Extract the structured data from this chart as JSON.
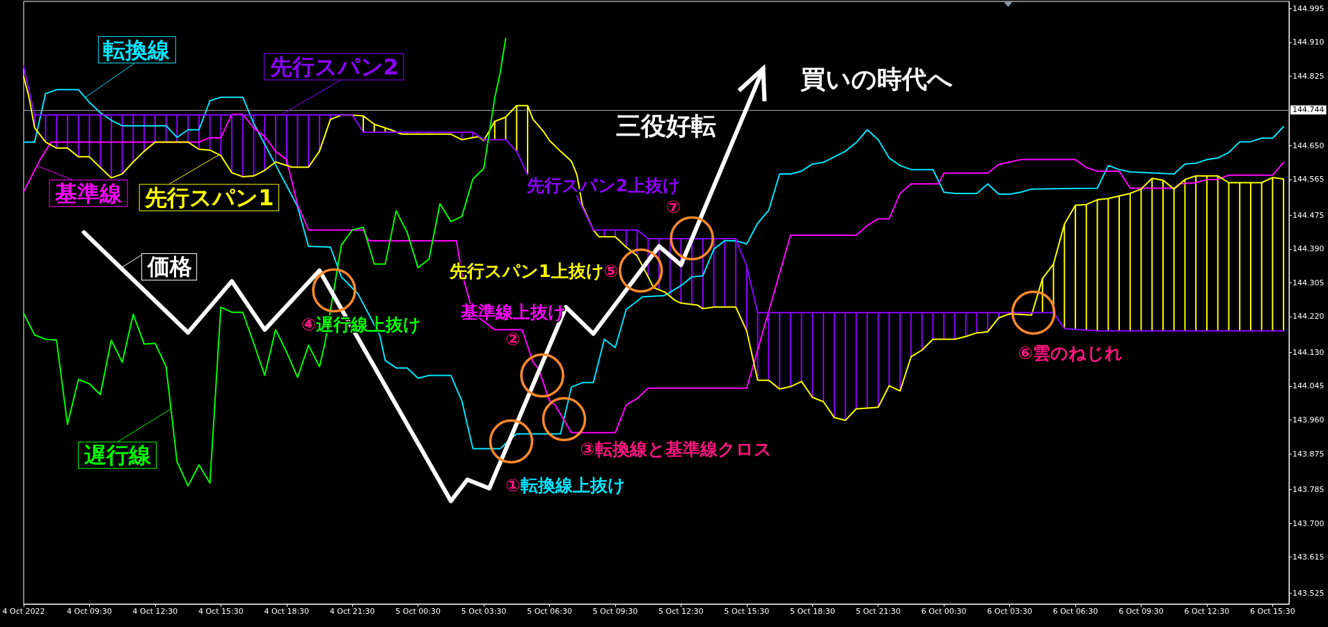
{
  "chart_data": {
    "type": "line",
    "marker": "none",
    "legend": "left",
    "xlim": [
      "2022-10-04T06:30",
      "2022-10-06T16:15"
    ],
    "xticks": [
      {
        "value": "2022-10-04T06:30",
        "label": "4 Oct 2022"
      },
      {
        "value": "2022-10-04T09:30",
        "label": "4 Oct 09:30"
      },
      {
        "value": "2022-10-04T12:30",
        "label": "4 Oct 12:30"
      },
      {
        "value": "2022-10-04T15:30",
        "label": "4 Oct 15:30"
      },
      {
        "value": "2022-10-04T18:30",
        "label": "4 Oct 18:30"
      },
      {
        "value": "2022-10-04T21:30",
        "label": "4 Oct 21:30"
      },
      {
        "value": "2022-10-05T00:30",
        "label": "5 Oct 00:30"
      },
      {
        "value": "2022-10-05T03:30",
        "label": "5 Oct 03:30"
      },
      {
        "value": "2022-10-05T06:30",
        "label": "5 Oct 06:30"
      },
      {
        "value": "2022-10-05T09:30",
        "label": "5 Oct 09:30"
      },
      {
        "value": "2022-10-05T12:30",
        "label": "5 Oct 12:30"
      },
      {
        "value": "2022-10-05T15:30",
        "label": "5 Oct 15:30"
      },
      {
        "value": "2022-10-05T18:30",
        "label": "5 Oct 18:30"
      },
      {
        "value": "2022-10-05T21:30",
        "label": "5 Oct 21:30"
      },
      {
        "value": "2022-10-06T00:30",
        "label": "6 Oct 00:30"
      },
      {
        "value": "2022-10-06T03:30",
        "label": "6 Oct 03:30"
      },
      {
        "value": "2022-10-06T06:30",
        "label": "6 Oct 06:30"
      },
      {
        "value": "2022-10-06T09:30",
        "label": "6 Oct 09:30"
      },
      {
        "value": "2022-10-06T12:30",
        "label": "6 Oct 12:30"
      },
      {
        "value": "2022-10-06T15:30",
        "label": "6 Oct 15:30"
      }
    ],
    "ylim": [
      143.497,
      145.013
    ],
    "yticks": [
      143.525,
      143.615,
      {
        "value": 143.7,
        "label": "143.700"
      },
      143.785,
      143.875,
      {
        "value": 143.96,
        "label": "143.960"
      },
      144.045,
      {
        "value": 144.13,
        "label": "144.130"
      },
      {
        "value": 144.22,
        "label": "144.220"
      },
      144.305,
      {
        "value": 144.39,
        "label": "144.390"
      },
      144.475,
      144.565,
      {
        "value": 144.65,
        "label": "144.650"
      },
      144.825,
      {
        "value": 144.91,
        "label": "144.910"
      },
      144.995
    ],
    "ref_lines": [
      {
        "axis": "y",
        "value": 144.744,
        "label": "144.744",
        "color": "#a0a4a8"
      }
    ],
    "series": [
      {
        "name": "転換線",
        "color": "#00e5ff",
        "x": [
          "2022-10-04T06:30",
          "2022-10-04T07:00",
          "2022-10-04T07:30",
          "2022-10-04T08:00",
          "2022-10-04T09:00",
          "2022-10-04T09:30",
          "2022-10-04T10:00",
          "2022-10-04T10:30",
          "2022-10-04T11:00",
          "2022-10-04T13:00",
          "2022-10-04T13:30",
          "2022-10-04T14:00",
          "2022-10-04T14:30",
          "2022-10-04T15:00",
          "2022-10-04T15:30",
          "2022-10-04T16:30",
          "2022-10-04T17:00",
          "2022-10-04T19:00",
          "2022-10-04T19:30",
          "2022-10-04T20:30",
          "2022-10-04T21:00",
          "2022-10-04T21:45",
          "2022-10-04T22:45",
          "2022-10-04T23:00",
          "2022-10-04T23:30",
          "2022-10-05T00:00",
          "2022-10-05T00:30",
          "2022-10-05T01:00",
          "2022-10-05T02:00",
          "2022-10-05T02:30",
          "2022-10-05T03:00",
          "2022-10-05T04:15",
          "2022-10-05T04:30",
          "2022-10-05T05:00",
          "2022-10-05T07:00",
          "2022-10-05T07:30",
          "2022-10-05T08:00",
          "2022-10-05T08:30",
          "2022-10-05T09:00",
          "2022-10-05T09:30",
          "2022-10-05T10:00",
          "2022-10-05T10:45",
          "2022-10-05T11:45",
          "2022-10-05T12:30",
          "2022-10-05T13:00",
          "2022-10-05T13:30",
          "2022-10-05T14:00",
          "2022-10-05T14:30",
          "2022-10-05T15:00",
          "2022-10-05T15:30",
          "2022-10-05T16:00",
          "2022-10-05T16:30",
          "2022-10-05T17:00",
          "2022-10-05T17:30",
          "2022-10-05T18:00",
          "2022-10-05T18:30",
          "2022-10-05T19:00",
          "2022-10-05T19:30",
          "2022-10-05T20:00",
          "2022-10-05T20:30",
          "2022-10-05T21:00",
          "2022-10-05T21:30",
          "2022-10-05T22:00",
          "2022-10-05T22:30",
          "2022-10-05T23:00",
          "2022-10-06T00:00",
          "2022-10-06T00:30",
          "2022-10-06T01:00",
          "2022-10-06T02:00",
          "2022-10-06T02:30",
          "2022-10-06T03:00",
          "2022-10-06T03:30",
          "2022-10-06T04:00",
          "2022-10-06T04:30",
          "2022-10-06T07:30",
          "2022-10-06T08:00",
          "2022-10-06T08:30",
          "2022-10-06T09:00",
          "2022-10-06T11:00",
          "2022-10-06T11:30",
          "2022-10-06T12:00",
          "2022-10-06T12:30",
          "2022-10-06T13:00",
          "2022-10-06T13:30",
          "2022-10-06T14:00",
          "2022-10-06T14:30",
          "2022-10-06T15:00",
          "2022-10-06T15:30",
          "2022-10-06T16:00"
        ],
        "values": [
          144.659,
          144.659,
          144.781,
          144.791,
          144.791,
          144.759,
          144.733,
          144.714,
          144.7,
          144.7,
          144.671,
          144.69,
          144.69,
          144.763,
          144.772,
          144.772,
          144.706,
          144.497,
          144.397,
          144.395,
          144.32,
          144.278,
          144.174,
          144.11,
          144.091,
          144.091,
          144.065,
          144.072,
          144.072,
          144.008,
          143.888,
          143.888,
          143.901,
          143.925,
          143.925,
          144.043,
          144.054,
          144.054,
          144.163,
          144.142,
          144.238,
          144.27,
          144.273,
          144.298,
          144.32,
          144.323,
          144.39,
          144.411,
          144.411,
          144.403,
          144.455,
          144.487,
          144.579,
          144.579,
          144.586,
          144.604,
          144.608,
          144.622,
          144.636,
          144.658,
          144.69,
          144.665,
          144.619,
          144.6,
          144.59,
          144.59,
          144.533,
          144.53,
          144.53,
          144.554,
          144.528,
          144.528,
          144.533,
          144.541,
          144.543,
          144.6,
          144.59,
          144.584,
          144.579,
          144.604,
          144.606,
          144.615,
          144.619,
          144.633,
          144.66,
          144.66,
          144.669,
          144.669,
          144.698
        ]
      },
      {
        "name": "基準線",
        "color": "#ff00ff",
        "x": [
          "2022-10-04T06:30",
          "2022-10-04T07:15",
          "2022-10-04T07:45",
          "2022-10-04T14:30",
          "2022-10-04T15:00",
          "2022-10-04T15:30",
          "2022-10-04T16:00",
          "2022-10-04T16:30",
          "2022-10-04T17:00",
          "2022-10-04T17:30",
          "2022-10-04T18:00",
          "2022-10-04T18:30",
          "2022-10-04T19:00",
          "2022-10-04T19:30",
          "2022-10-04T22:00",
          "2022-10-04T22:15",
          "2022-10-05T02:15",
          "2022-10-05T02:30",
          "2022-10-05T03:00",
          "2022-10-05T04:00",
          "2022-10-05T05:15",
          "2022-10-05T05:45",
          "2022-10-05T06:00",
          "2022-10-05T06:30",
          "2022-10-05T06:45",
          "2022-10-05T07:30",
          "2022-10-05T09:30",
          "2022-10-05T10:00",
          "2022-10-05T10:30",
          "2022-10-05T11:00",
          "2022-10-05T15:30",
          "2022-10-05T17:30",
          "2022-10-05T20:30",
          "2022-10-05T21:00",
          "2022-10-05T21:30",
          "2022-10-05T22:00",
          "2022-10-05T22:30",
          "2022-10-05T23:00",
          "2022-10-06T00:15",
          "2022-10-06T00:30",
          "2022-10-06T02:30",
          "2022-10-06T03:00",
          "2022-10-06T04:00",
          "2022-10-06T06:30",
          "2022-10-06T07:00",
          "2022-10-06T07:30",
          "2022-10-06T08:30",
          "2022-10-06T09:00",
          "2022-10-06T11:00",
          "2022-10-06T11:15",
          "2022-10-06T12:00",
          "2022-10-06T12:30",
          "2022-10-06T13:00",
          "2022-10-06T13:30",
          "2022-10-06T15:30",
          "2022-10-06T16:00"
        ],
        "values": [
          144.534,
          144.615,
          144.659,
          144.659,
          144.67,
          144.67,
          144.729,
          144.729,
          144.695,
          144.673,
          144.636,
          144.615,
          144.502,
          144.438,
          144.438,
          144.411,
          144.411,
          144.33,
          144.229,
          144.187,
          144.187,
          144.105,
          144.089,
          144.008,
          143.998,
          143.928,
          143.928,
          143.998,
          144.014,
          144.04,
          144.04,
          144.425,
          144.425,
          144.449,
          144.466,
          144.466,
          144.53,
          144.554,
          144.554,
          144.581,
          144.581,
          144.603,
          144.615,
          144.615,
          144.595,
          144.586,
          144.586,
          144.543,
          144.543,
          144.554,
          144.557,
          144.565,
          144.565,
          144.576,
          144.576,
          144.608
        ]
      },
      {
        "name": "先行スパン1",
        "color": "#ffff00",
        "x": [
          "2022-10-04T06:30",
          "2022-10-04T06:45",
          "2022-10-04T07:00",
          "2022-10-04T07:30",
          "2022-10-04T08:00",
          "2022-10-04T08:30",
          "2022-10-04T09:00",
          "2022-10-04T09:30",
          "2022-10-04T10:00",
          "2022-10-04T10:30",
          "2022-10-04T11:00",
          "2022-10-04T11:30",
          "2022-10-04T12:00",
          "2022-10-04T12:30",
          "2022-10-04T14:00",
          "2022-10-04T14:30",
          "2022-10-04T15:00",
          "2022-10-04T15:30",
          "2022-10-04T16:00",
          "2022-10-04T16:30",
          "2022-10-04T17:00",
          "2022-10-04T17:30",
          "2022-10-04T18:00",
          "2022-10-04T18:45",
          "2022-10-04T19:30",
          "2022-10-04T20:00",
          "2022-10-04T20:30",
          "2022-10-04T21:00",
          "2022-10-04T21:30",
          "2022-10-04T22:00",
          "2022-10-04T22:30",
          "2022-10-04T23:15",
          "2022-10-04T23:45",
          "2022-10-05T02:00",
          "2022-10-05T02:30",
          "2022-10-05T03:15",
          "2022-10-05T03:30",
          "2022-10-05T04:00",
          "2022-10-05T04:30",
          "2022-10-05T05:00",
          "2022-10-05T05:30",
          "2022-10-05T05:45",
          "2022-10-05T06:15",
          "2022-10-05T06:30",
          "2022-10-05T07:00",
          "2022-10-05T07:30",
          "2022-10-05T07:45",
          "2022-10-05T08:00",
          "2022-10-05T08:30",
          "2022-10-05T08:45",
          "2022-10-05T09:30",
          "2022-10-05T10:00",
          "2022-10-05T10:30",
          "2022-10-05T11:00",
          "2022-10-05T11:15",
          "2022-10-05T11:45",
          "2022-10-05T12:15",
          "2022-10-05T12:30",
          "2022-10-05T13:15",
          "2022-10-05T13:30",
          "2022-10-05T14:00",
          "2022-10-05T15:00",
          "2022-10-05T15:30",
          "2022-10-05T16:00",
          "2022-10-05T16:30",
          "2022-10-05T17:00",
          "2022-10-05T17:30",
          "2022-10-05T18:00",
          "2022-10-05T18:30",
          "2022-10-05T19:00",
          "2022-10-05T19:30",
          "2022-10-05T20:00",
          "2022-10-05T20:30",
          "2022-10-05T21:00",
          "2022-10-05T21:30",
          "2022-10-05T22:00",
          "2022-10-05T22:30",
          "2022-10-05T23:00",
          "2022-10-05T23:30",
          "2022-10-06T00:00",
          "2022-10-06T01:00",
          "2022-10-06T01:30",
          "2022-10-06T02:00",
          "2022-10-06T02:30",
          "2022-10-06T03:00",
          "2022-10-06T03:30",
          "2022-10-06T04:30",
          "2022-10-06T05:00",
          "2022-10-06T05:30",
          "2022-10-06T06:00",
          "2022-10-06T06:30",
          "2022-10-06T07:00",
          "2022-10-06T07:30",
          "2022-10-06T08:00",
          "2022-10-06T09:00",
          "2022-10-06T09:30",
          "2022-10-06T10:00",
          "2022-10-06T10:30",
          "2022-10-06T11:00",
          "2022-10-06T11:30",
          "2022-10-06T12:00",
          "2022-10-06T13:00",
          "2022-10-06T13:30",
          "2022-10-06T15:00",
          "2022-10-06T15:30",
          "2022-10-06T16:00"
        ],
        "values": [
          144.824,
          144.77,
          144.695,
          144.659,
          144.644,
          144.644,
          144.622,
          144.622,
          144.595,
          144.569,
          144.579,
          144.609,
          144.636,
          144.659,
          144.659,
          144.641,
          144.639,
          144.625,
          144.582,
          144.572,
          144.574,
          144.588,
          144.609,
          144.596,
          144.596,
          144.636,
          144.716,
          144.727,
          144.727,
          144.725,
          144.704,
          144.69,
          144.679,
          144.679,
          144.665,
          144.673,
          144.663,
          144.711,
          144.722,
          144.751,
          144.751,
          144.716,
          144.684,
          144.663,
          144.636,
          144.611,
          144.577,
          144.5,
          144.438,
          144.421,
          144.421,
          144.395,
          144.373,
          144.32,
          144.293,
          144.282,
          144.26,
          144.254,
          144.249,
          144.24,
          144.244,
          144.244,
          144.184,
          144.06,
          144.06,
          144.038,
          144.044,
          144.057,
          144.017,
          144.006,
          143.966,
          143.959,
          143.988,
          143.99,
          143.992,
          144.046,
          144.033,
          144.119,
          144.136,
          144.163,
          144.163,
          144.17,
          144.179,
          144.182,
          144.217,
          144.227,
          144.224,
          144.316,
          144.352,
          144.453,
          144.5,
          144.502,
          144.514,
          144.517,
          144.53,
          144.541,
          144.568,
          144.563,
          144.541,
          144.565,
          144.574,
          144.574,
          144.557,
          144.557,
          144.57,
          144.566
        ]
      },
      {
        "name": "先行スパン2",
        "color": "#8c00ff",
        "x": [
          "2022-10-04T06:30",
          "2022-10-04T07:00",
          "2022-10-04T21:30",
          "2022-10-04T22:00",
          "2022-10-05T03:00",
          "2022-10-05T03:30",
          "2022-10-05T04:30",
          "2022-10-05T05:00",
          "2022-10-05T05:30",
          "2022-10-05T06:30",
          "2022-10-05T07:45",
          "2022-10-05T08:30",
          "2022-10-05T10:30",
          "2022-10-05T11:00",
          "2022-10-05T15:00",
          "2022-10-05T15:30",
          "2022-10-05T16:00",
          "2022-10-06T05:30",
          "2022-10-06T06:00",
          "2022-10-06T07:30",
          "2022-10-06T16:00"
        ],
        "values": [
          144.85,
          144.727,
          144.727,
          144.684,
          144.684,
          144.665,
          144.665,
          144.636,
          144.577,
          null,
          144.523,
          144.438,
          144.438,
          144.416,
          144.416,
          144.347,
          144.23,
          144.23,
          144.19,
          144.184,
          144.184
        ]
      },
      {
        "name": "遅行線",
        "color": "#00ff00",
        "x": [
          "2022-10-04T06:30",
          "2022-10-04T07:00",
          "2022-10-04T07:30",
          "2022-10-04T08:00",
          "2022-10-04T08:30",
          "2022-10-04T09:00",
          "2022-10-04T09:30",
          "2022-10-04T10:00",
          "2022-10-04T10:30",
          "2022-10-04T11:00",
          "2022-10-04T11:30",
          "2022-10-04T12:00",
          "2022-10-04T12:30",
          "2022-10-04T13:00",
          "2022-10-04T13:30",
          "2022-10-04T14:00",
          "2022-10-04T14:30",
          "2022-10-04T15:00",
          "2022-10-04T15:30",
          "2022-10-04T16:00",
          "2022-10-04T16:30",
          "2022-10-04T17:00",
          "2022-10-04T17:30",
          "2022-10-04T18:00",
          "2022-10-04T18:30",
          "2022-10-04T19:00",
          "2022-10-04T19:30",
          "2022-10-04T20:00",
          "2022-10-04T20:15",
          "2022-10-04T21:00",
          "2022-10-04T21:30",
          "2022-10-04T22:00",
          "2022-10-04T22:30",
          "2022-10-04T23:00",
          "2022-10-04T23:30",
          "2022-10-05T00:00",
          "2022-10-05T00:30",
          "2022-10-05T01:00",
          "2022-10-05T01:30",
          "2022-10-05T02:00",
          "2022-10-05T02:30",
          "2022-10-05T03:00",
          "2022-10-05T03:30",
          "2022-10-05T04:00",
          "2022-10-05T04:15",
          "2022-10-05T04:30"
        ],
        "values": [
          144.228,
          144.174,
          144.163,
          144.161,
          143.949,
          144.062,
          144.051,
          144.024,
          144.161,
          144.105,
          144.226,
          144.151,
          144.153,
          144.094,
          143.855,
          143.794,
          143.847,
          143.801,
          144.244,
          144.231,
          144.231,
          144.153,
          144.072,
          144.187,
          144.131,
          144.067,
          144.148,
          144.094,
          144.153,
          144.4,
          144.438,
          144.445,
          144.352,
          144.352,
          144.486,
          144.432,
          144.343,
          144.365,
          144.504,
          144.459,
          144.472,
          144.566,
          144.593,
          144.77,
          144.834,
          144.92
        ]
      },
      {
        "name": "価格",
        "color": "#ffffff",
        "x": [
          "2022-10-04T09:15",
          "2022-10-04T14:00",
          "2022-10-04T16:00",
          "2022-10-04T17:30",
          "2022-10-04T20:00",
          "2022-10-05T02:00",
          "2022-10-05T02:45",
          "2022-10-05T03:45",
          "2022-10-05T07:15",
          "2022-10-05T08:30",
          "2022-10-05T11:30",
          "2022-10-05T12:30",
          "2022-10-05T16:15"
        ],
        "values": [
          144.432,
          144.18,
          144.309,
          144.187,
          144.336,
          143.756,
          143.81,
          143.788,
          144.244,
          144.177,
          144.397,
          144.35,
          144.844
        ]
      }
    ],
    "annotations": [
      {
        "text": "①転換線上抜け",
        "x": "2022-10-05T04:45",
        "y": 143.906
      },
      {
        "text": "基準線上抜け\n②",
        "x": "2022-10-05T06:10",
        "y": 144.072
      },
      {
        "text": "③転換線と基準線クロス",
        "x": "2022-10-05T07:10",
        "y": 143.962
      },
      {
        "text": "④遅行線上抜け",
        "x": "2022-10-04T20:40",
        "y": 144.286
      },
      {
        "text": "先行スパン1上抜け⑤",
        "x": "2022-10-05T10:40",
        "y": 144.336
      },
      {
        "text": "⑥雲のねじれ",
        "x": "2022-10-06T04:35",
        "y": 144.23
      },
      {
        "text": "先行スパン2上抜け\n⑦",
        "x": "2022-10-05T13:00",
        "y": 144.417
      },
      "三役好転",
      "買いの時代へ"
    ]
  }
}
